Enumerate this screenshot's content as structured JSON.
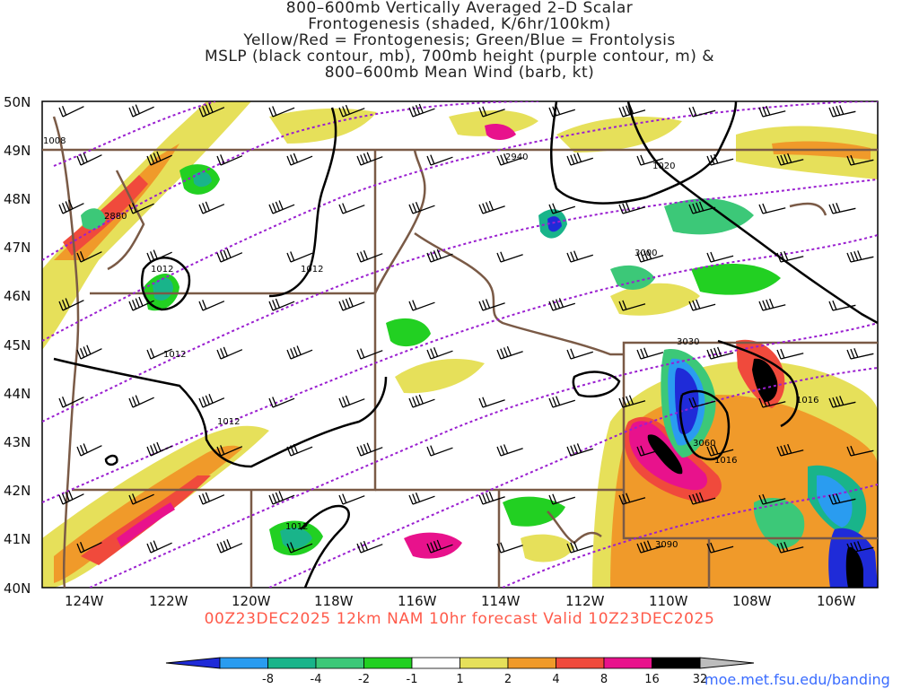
{
  "title_lines": [
    "800–600mb Vertically Averaged 2–D Scalar",
    "Frontogenesis (shaded, K/6hr/100km)",
    "Yellow/Red = Frontogenesis;  Green/Blue = Frontolysis",
    "MSLP (black contour, mb), 700mb height (purple contour, m) &",
    "800–600mb Mean Wind (barb, kt)"
  ],
  "lat_labels": [
    "50N",
    "49N",
    "48N",
    "47N",
    "46N",
    "45N",
    "44N",
    "43N",
    "42N",
    "41N",
    "40N"
  ],
  "lon_labels": [
    "124W",
    "122W",
    "120W",
    "118W",
    "116W",
    "114W",
    "112W",
    "110W",
    "108W",
    "106W"
  ],
  "valid_text": "00Z23DEC2025 12km NAM 10hr forecast Valid 10Z23DEC2025",
  "url_text": "moe.met.fsu.edu/banding",
  "colorbar": {
    "ticks": [
      "-8",
      "-4",
      "-2",
      "-1",
      "1",
      "2",
      "4",
      "8",
      "16",
      "32"
    ],
    "colors": [
      "#1f2bd8",
      "#2a9cf0",
      "#19b48a",
      "#3cc878",
      "#22d022",
      "#ffffff",
      "#e6e05a",
      "#f09a2a",
      "#f04a3c",
      "#e8128c",
      "#000000",
      "#bdbdbd"
    ]
  },
  "contour_labels": {
    "mslp": [
      "1008",
      "1012",
      "1012",
      "1012",
      "1012",
      "1012",
      "1020",
      "1016",
      "1016"
    ],
    "height": [
      "2880",
      "2940",
      "3000",
      "3030",
      "3060",
      "3090"
    ]
  },
  "colors": {
    "mslp": "#000000",
    "height": "#9a1fd0",
    "borders": "#7a5a46",
    "frame": "#000000"
  }
}
